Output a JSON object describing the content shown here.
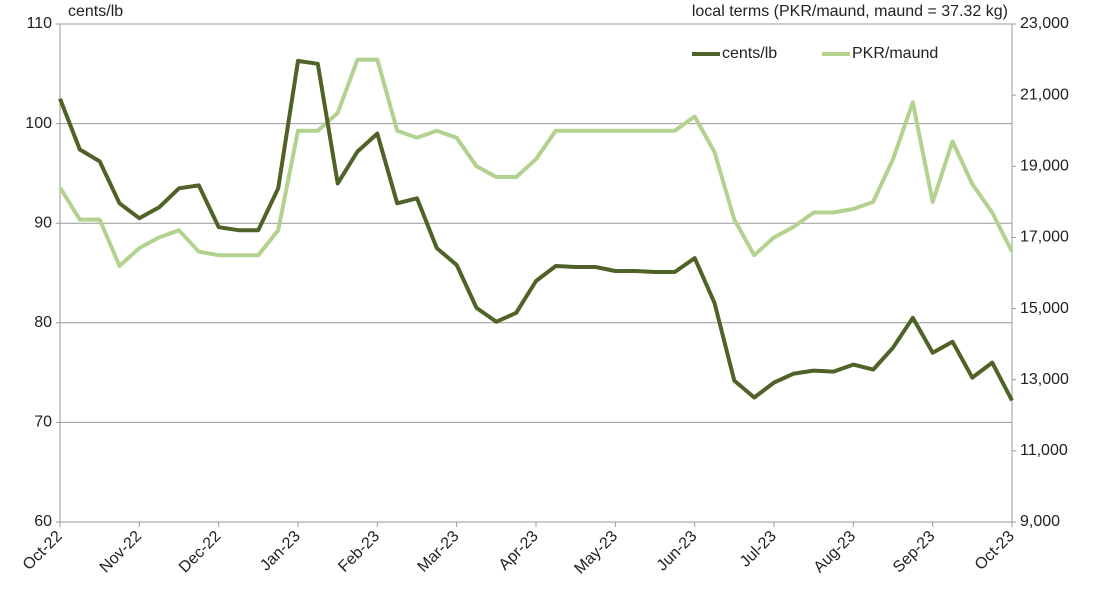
{
  "chart_data": {
    "type": "line",
    "y_label": "cents/lb",
    "y2_label": "local terms (PKR/maund, maund = 37.32 kg)",
    "categories": [
      "Oct-22",
      null,
      null,
      null,
      "Nov-22",
      null,
      null,
      null,
      "Dec-22",
      null,
      null,
      null,
      "Jan-23",
      null,
      null,
      null,
      "Feb-23",
      null,
      null,
      null,
      "Mar-23",
      null,
      null,
      null,
      "Apr-23",
      null,
      null,
      null,
      "May-23",
      null,
      null,
      null,
      "Jun-23",
      null,
      null,
      null,
      "Jul-23",
      null,
      null,
      null,
      "Aug-23",
      null,
      null,
      null,
      "Sep-23",
      null,
      null,
      null,
      "Oct-23"
    ],
    "series": [
      {
        "name": "cents/lb",
        "color": "#4f6228",
        "values": [
          102.5,
          97.4,
          96.2,
          92,
          90.5,
          91.6,
          93.5,
          93.8,
          89.6,
          89.3,
          89.3,
          93.5,
          106.3,
          106,
          94,
          97.2,
          99,
          92,
          92.5,
          87.5,
          85.8,
          81.5,
          80.1,
          81,
          84.2,
          85.7,
          85.6,
          85.6,
          85.2,
          85.2,
          85.1,
          85.1,
          86.5,
          82,
          74.2,
          72.5,
          74,
          74.9,
          75.2,
          75.1,
          75.8,
          75.3,
          77.5,
          80.5,
          77,
          78.1,
          74.5,
          76,
          72.2
        ]
      },
      {
        "name": "PKR/maund",
        "color": "#b3d18f",
        "axis": "y2",
        "values": [
          18400,
          17500,
          17500,
          16200,
          16700,
          17000,
          17200,
          16600,
          16500,
          16500,
          16500,
          17200,
          20000,
          20000,
          20500,
          22000,
          22000,
          20000,
          19800,
          20000,
          19800,
          19000,
          18700,
          18700,
          19200,
          20000,
          20000,
          20000,
          20000,
          20000,
          20000,
          20000,
          20400,
          19400,
          17500,
          16500,
          17000,
          17300,
          17700,
          17700,
          17800,
          18000,
          19200,
          20800,
          18000,
          19700,
          18500,
          17700,
          16600
        ]
      }
    ],
    "ylim": [
      60,
      110
    ],
    "yticks": [
      60,
      70,
      80,
      90,
      100,
      110
    ],
    "y2lim": [
      9000,
      23000
    ],
    "y2ticks": [
      {
        "value": 9000,
        "label": "9,000"
      },
      {
        "value": 11000,
        "label": "11,000"
      },
      {
        "value": 13000,
        "label": "13,000"
      },
      {
        "value": 15000,
        "label": "15,000"
      },
      {
        "value": 17000,
        "label": "17,000"
      },
      {
        "value": 19000,
        "label": "19,000"
      },
      {
        "value": 21000,
        "label": "21,000"
      },
      {
        "value": 23000,
        "label": "23,000"
      }
    ],
    "grid": true,
    "legend": "top-right"
  }
}
